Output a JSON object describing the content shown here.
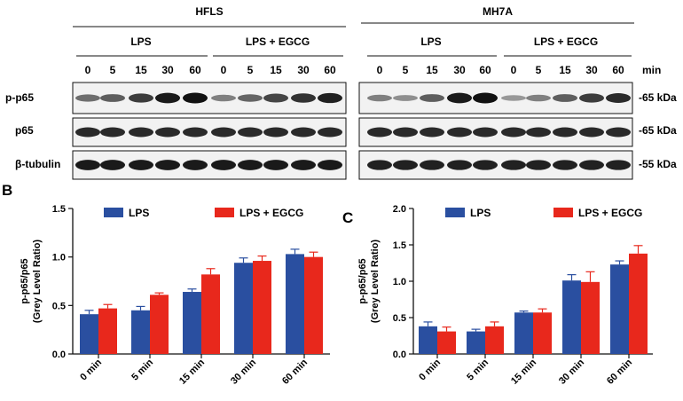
{
  "figure": {
    "colors": {
      "lps": "#2a4fa0",
      "egcg": "#e8281c",
      "axis": "#111111",
      "blot_bg": "#f2f2f2",
      "band": "#111111"
    },
    "blot": {
      "cell_lines": [
        "HFLS",
        "MH7A"
      ],
      "groups": [
        "LPS",
        "LPS + EGCG"
      ],
      "time_points": [
        "0",
        "5",
        "15",
        "30",
        "60"
      ],
      "time_unit": "min",
      "rows": [
        {
          "label": "p-p65",
          "kda": "-65 kDa",
          "intensity_hfls": [
            0.45,
            0.55,
            0.75,
            0.95,
            1.0,
            0.35,
            0.5,
            0.7,
            0.8,
            0.9
          ],
          "intensity_mh7a": [
            0.35,
            0.25,
            0.55,
            0.95,
            1.0,
            0.2,
            0.35,
            0.55,
            0.75,
            0.85
          ]
        },
        {
          "label": "p65",
          "kda": "-65 kDa",
          "intensity_hfls": [
            0.85,
            0.85,
            0.85,
            0.85,
            0.85,
            0.85,
            0.85,
            0.85,
            0.85,
            0.85
          ],
          "intensity_mh7a": [
            0.85,
            0.85,
            0.85,
            0.85,
            0.85,
            0.85,
            0.85,
            0.85,
            0.85,
            0.85
          ]
        },
        {
          "label": "β-tubulin",
          "kda": "-55 kDa",
          "intensity_hfls": [
            0.95,
            0.95,
            0.95,
            0.95,
            0.95,
            0.95,
            0.95,
            0.95,
            0.95,
            0.95
          ],
          "intensity_mh7a": [
            0.9,
            0.9,
            0.9,
            0.9,
            0.9,
            0.9,
            0.9,
            0.9,
            0.9,
            0.9
          ]
        }
      ]
    }
  },
  "chart_data": [
    {
      "panel": "B",
      "type": "bar",
      "ylabel_line1": "p-p65/p65",
      "ylabel_line2": "(Grey Level Ratio)",
      "categories": [
        "0 min",
        "5 min",
        "15 min",
        "30 min",
        "60 min"
      ],
      "ylim": [
        0,
        1.5
      ],
      "yticks": [
        "0.0",
        "0.5",
        "1.0",
        "1.5"
      ],
      "series": [
        {
          "name": "LPS",
          "values": [
            0.41,
            0.45,
            0.64,
            0.94,
            1.03
          ],
          "errors": [
            0.04,
            0.04,
            0.03,
            0.05,
            0.05
          ]
        },
        {
          "name": "LPS + EGCG",
          "values": [
            0.47,
            0.61,
            0.82,
            0.96,
            1.0
          ],
          "errors": [
            0.04,
            0.02,
            0.06,
            0.05,
            0.05
          ]
        }
      ]
    },
    {
      "panel": "C",
      "type": "bar",
      "ylabel_line1": "p-p65/p65",
      "ylabel_line2": "(Grey Level Ratio)",
      "categories": [
        "0 min",
        "5 min",
        "15 min",
        "30 min",
        "60 min"
      ],
      "ylim": [
        0,
        2.0
      ],
      "yticks": [
        "0.0",
        "0.5",
        "1.0",
        "1.5",
        "2.0"
      ],
      "series": [
        {
          "name": "LPS",
          "values": [
            0.38,
            0.31,
            0.57,
            1.01,
            1.23
          ],
          "errors": [
            0.06,
            0.03,
            0.02,
            0.08,
            0.05
          ]
        },
        {
          "name": "LPS + EGCG",
          "values": [
            0.31,
            0.38,
            0.57,
            0.99,
            1.38
          ],
          "errors": [
            0.06,
            0.06,
            0.05,
            0.14,
            0.11
          ]
        }
      ]
    }
  ]
}
